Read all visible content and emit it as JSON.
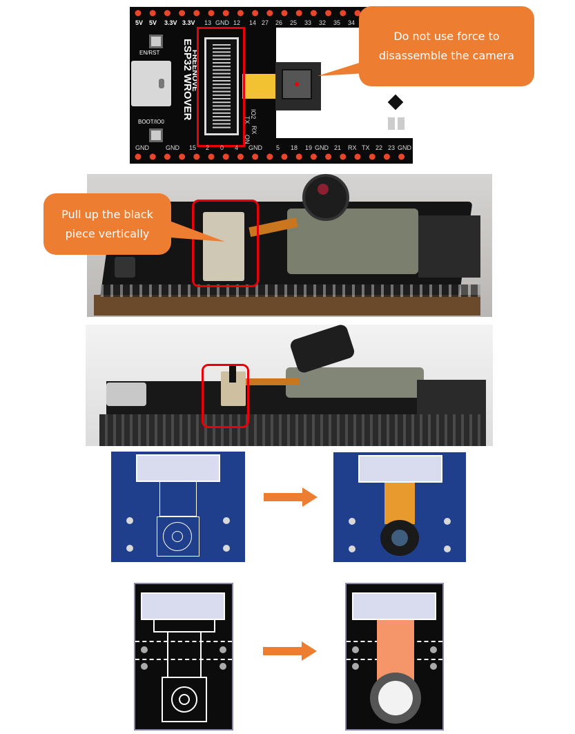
{
  "board": {
    "top_pins": [
      "5V",
      "5V",
      "3.3V",
      "3.3V",
      "13",
      "GND",
      "12",
      "14",
      "27",
      "26",
      "25",
      "33",
      "32",
      "35",
      "34"
    ],
    "bottom_pins": [
      "GND",
      "GND",
      "15",
      "2",
      "0",
      "4",
      "GND",
      "5",
      "18",
      "19",
      "GND",
      "21",
      "RX",
      "TX",
      "22",
      "23",
      "GND"
    ],
    "button_enrst": "EN/RST",
    "button_boot": "BOOT/IO0",
    "brand_text": "FREENOVE",
    "model_text": "ESP32 WROVER",
    "side_pins": [
      "IO2",
      "TX",
      "RX",
      "ON"
    ]
  },
  "callouts": {
    "warning_lines": [
      "Do not use force to",
      "disassemble the camera"
    ],
    "instruction_lines": [
      "Pull up the black",
      "piece vertically"
    ]
  },
  "colors": {
    "accent_orange": "#ED7D31",
    "highlight_red": "#E8000A",
    "pcb_blue": "#1F3F8C",
    "pcb_black": "#0c0c0c",
    "ribbon_orange": "#F4956A"
  },
  "icons": [
    "arrow-right-icon",
    "arrow-right-icon"
  ]
}
